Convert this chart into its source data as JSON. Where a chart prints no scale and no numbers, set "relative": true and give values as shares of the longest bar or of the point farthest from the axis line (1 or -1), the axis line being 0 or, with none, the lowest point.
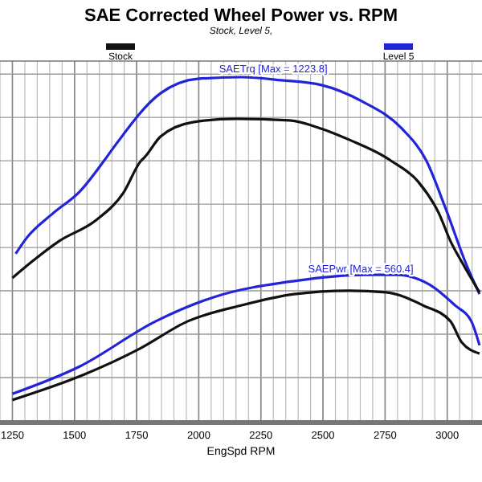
{
  "chart_data": {
    "type": "line",
    "title": "SAE Corrected Wheel Power vs. RPM",
    "subtitle": "Stock, Level 5,",
    "xlabel": "EngSpd RPM",
    "relative": true,
    "xlim": [
      1200,
      3140
    ],
    "xticks": [
      1250,
      1500,
      1750,
      2000,
      2250,
      2500,
      2750,
      3000
    ],
    "grid": true,
    "legend": "top",
    "line_style": "solid",
    "series": [
      {
        "name": "Level 5",
        "color": "#2323d8",
        "x": [
          1263,
          1308,
          1412,
          1522,
          1619,
          1652,
          1846,
          1995,
          2170,
          2332,
          2494,
          2656,
          2818,
          2916,
          2994,
          3078,
          3130
        ],
        "values": [
          0.486,
          0.533,
          0.603,
          0.668,
          0.757,
          0.79,
          0.953,
          0.995,
          1.0,
          0.991,
          0.977,
          0.93,
          0.85,
          0.757,
          0.617,
          0.453,
          0.369
        ]
      },
      {
        "color": "#2323d8",
        "x": [
          1250,
          1522,
          1827,
          2060,
          2384,
          2669,
          2799,
          2928,
          3032,
          3097,
          3130
        ],
        "values": [
          0.079,
          0.159,
          0.29,
          0.36,
          0.407,
          0.425,
          0.425,
          0.397,
          0.336,
          0.29,
          0.22
        ]
      },
      {
        "name": "Stock",
        "color": "#111111",
        "x": [
          1250,
          1328,
          1438,
          1587,
          1697,
          1768,
          1781,
          1846,
          1976,
          2151,
          2365,
          2494,
          2605,
          2754,
          2773,
          2883,
          2967,
          3013,
          3058,
          3130
        ],
        "values": [
          0.416,
          0.463,
          0.523,
          0.584,
          0.664,
          0.757,
          0.766,
          0.827,
          0.869,
          0.879,
          0.874,
          0.85,
          0.818,
          0.766,
          0.757,
          0.696,
          0.603,
          0.523,
          0.463,
          0.374
        ]
      },
      {
        "color": "#111111",
        "x": [
          1250,
          1542,
          1762,
          1956,
          2170,
          2384,
          2605,
          2754,
          2903,
          3013,
          3058,
          3130
        ],
        "values": [
          0.061,
          0.136,
          0.21,
          0.29,
          0.336,
          0.369,
          0.379,
          0.374,
          0.336,
          0.29,
          0.229,
          0.196
        ]
      }
    ],
    "annotations": [
      {
        "text": "SAETrq [Max = 1223.8]",
        "x": 2300,
        "y": 0.99
      },
      {
        "text": "SAEPwr [Max = 560.4]",
        "x": 2864,
        "y": 0.41
      }
    ]
  }
}
